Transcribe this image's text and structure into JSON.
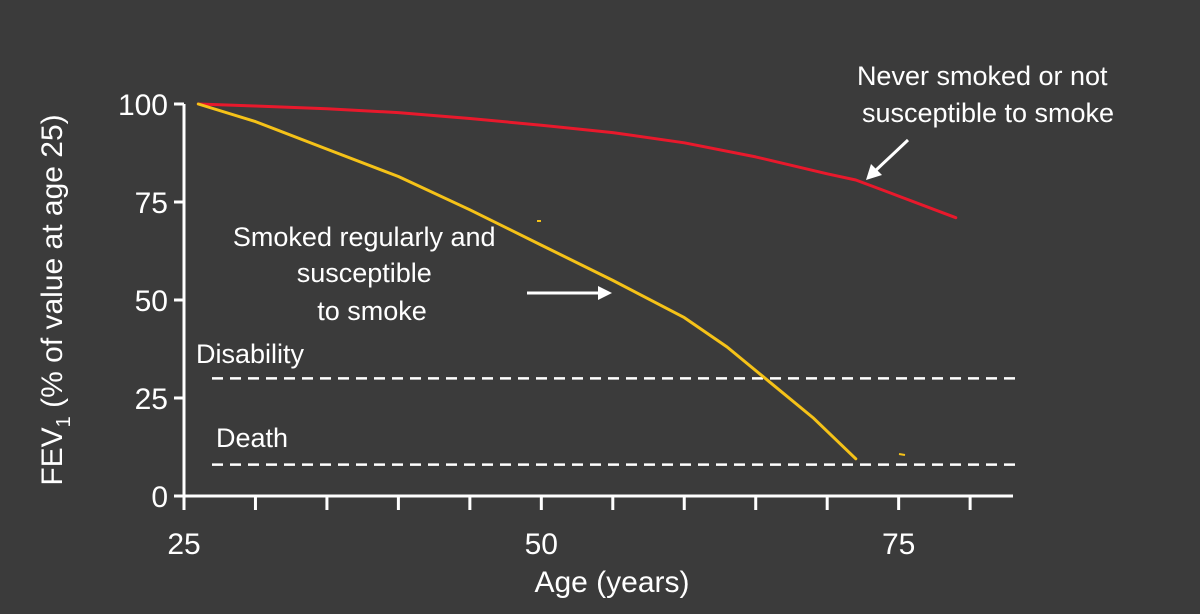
{
  "chart_data": {
    "type": "line",
    "title": "",
    "xlabel": "Age (years)",
    "ylabel": {
      "main": "FEV",
      "subscript": "1",
      "rest": " (% of value at age 25)"
    },
    "xlim": [
      25,
      83
    ],
    "ylim": [
      0,
      100
    ],
    "x_ticks": [
      25,
      50,
      75
    ],
    "y_ticks": [
      0,
      25,
      50,
      75,
      100
    ],
    "x_minor_step": 5,
    "grid": false,
    "legend": "none",
    "series": [
      {
        "id": "never",
        "color": "#e8192c",
        "x": [
          26,
          30,
          35,
          40,
          45,
          50,
          55,
          60,
          65,
          70,
          72,
          75,
          79
        ],
        "y": [
          100,
          99.5,
          98.8,
          97.8,
          96.3,
          94.6,
          92.7,
          90.1,
          86.5,
          82.2,
          80.6,
          76.5,
          71
        ]
      },
      {
        "id": "smoked",
        "color": "#f5c218",
        "x": [
          26,
          30,
          35,
          40,
          45,
          50,
          55,
          60,
          63,
          66,
          69,
          72
        ],
        "y": [
          100,
          95.5,
          88.5,
          81.5,
          73,
          64,
          55,
          45.5,
          38,
          29,
          20,
          9.5
        ]
      }
    ],
    "reference_lines": [
      {
        "id": "disability",
        "y": 30,
        "label": "Disability"
      },
      {
        "id": "death",
        "y": 8,
        "label": "Death"
      }
    ],
    "annotations": [
      {
        "id": "never",
        "lines": [
          "Never smoked or not",
          "susceptible to smoke"
        ]
      },
      {
        "id": "smoked",
        "lines": [
          "Smoked regularly and",
          "susceptible",
          "to smoke"
        ]
      }
    ],
    "colors": {
      "background": "#3b3b3b",
      "axis": "#ffffff",
      "never": "#e8192c",
      "smoked": "#f5c218"
    }
  }
}
